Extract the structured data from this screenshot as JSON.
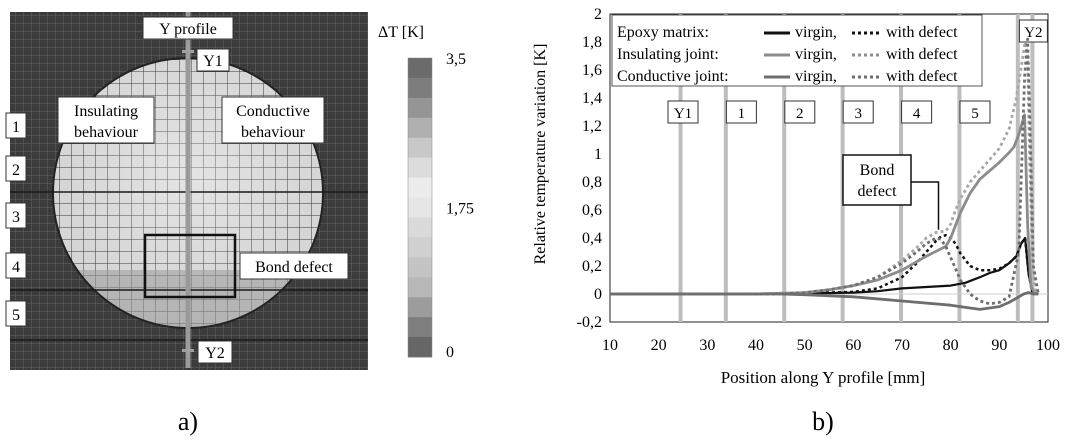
{
  "panel_a": {
    "caption": "a)",
    "y_profile_label": "Y profile",
    "y1_label": "Y1",
    "y2_label": "Y2",
    "insulating_label": [
      "Insulating",
      "behaviour"
    ],
    "conductive_label": [
      "Conductive",
      "behaviour"
    ],
    "bond_defect_label": "Bond defect",
    "zones": [
      "1",
      "2",
      "3",
      "4",
      "5"
    ],
    "colorbar": {
      "title": "ΔT [K]",
      "ticks": [
        "3,5",
        "1,75",
        "0"
      ],
      "range": [
        0,
        3.5
      ],
      "colors": [
        "#6b6b6b",
        "#7d7d7d",
        "#959595",
        "#b0b0b0",
        "#c8c8c8",
        "#dcdcdc",
        "#ececec",
        "#e6e6e6",
        "#dadada",
        "#d0d0d0",
        "#c4c4c4",
        "#b8b8b8",
        "#9c9c9c",
        "#7e7e7e",
        "#666666"
      ]
    }
  },
  "chart_data": {
    "type": "line",
    "caption": "b)",
    "xlabel": "Position along Y profile [mm]",
    "ylabel": "Relative temperature variation [K]",
    "xlim": [
      10,
      100
    ],
    "ylim": [
      -0.2,
      2
    ],
    "xticks": [
      10,
      20,
      30,
      40,
      50,
      60,
      70,
      80,
      90,
      100
    ],
    "yticks": [
      "-0,2",
      "0",
      "0,2",
      "0,4",
      "0,6",
      "0,8",
      "1",
      "1,2",
      "1,4",
      "1,6",
      "1,8",
      "2"
    ],
    "ytick_values": [
      -0.2,
      0,
      0.2,
      0.4,
      0.6,
      0.8,
      1,
      1.2,
      1.4,
      1.6,
      1.8,
      2
    ],
    "grid": false,
    "legend_position": "top",
    "legend": {
      "rows": [
        {
          "label": "Epoxy matrix:",
          "virgin": "virgin,",
          "defect": "with defect",
          "color": "#111111"
        },
        {
          "label": "Insulating joint:",
          "virgin": "virgin,",
          "defect": "with defect",
          "color": "#8c8c8c"
        },
        {
          "label": "Conductive joint:",
          "virgin": "virgin,",
          "defect": "with defect",
          "color": "#6e6e6e"
        }
      ]
    },
    "zone_lines": [
      24.5,
      33.8,
      45.8,
      57.8,
      69.8,
      81.8,
      93.8,
      96.8
    ],
    "zone_labels": [
      {
        "label": "Y1",
        "x": 25
      },
      {
        "label": "1",
        "x": 37
      },
      {
        "label": "2",
        "x": 49
      },
      {
        "label": "3",
        "x": 61
      },
      {
        "label": "4",
        "x": 73
      },
      {
        "label": "5",
        "x": 85
      },
      {
        "label": "Y2",
        "x": 97
      }
    ],
    "annotation": {
      "text": [
        "Bond",
        "defect"
      ],
      "target_x": 77.5,
      "target_y": 0.43
    },
    "series": [
      {
        "name": "Epoxy matrix: virgin",
        "color": "#111111",
        "dash": "solid",
        "width": 2.2,
        "x": [
          10,
          40,
          50,
          60,
          65,
          70,
          75,
          80,
          83,
          86,
          88,
          90,
          92,
          93.5,
          94.5,
          95.3,
          96,
          96.8,
          98
        ],
        "y": [
          0,
          0,
          0.005,
          0.01,
          0.02,
          0.04,
          0.05,
          0.06,
          0.08,
          0.12,
          0.15,
          0.17,
          0.22,
          0.27,
          0.36,
          0.4,
          0.15,
          0.01,
          0
        ]
      },
      {
        "name": "Epoxy matrix: with defect",
        "color": "#111111",
        "dash": "dotted",
        "width": 2.5,
        "x": [
          10,
          40,
          50,
          60,
          65,
          70,
          73,
          75,
          77,
          78,
          79,
          80,
          81,
          82,
          84,
          86,
          88,
          90,
          92,
          93.5,
          94.5,
          95.3,
          96,
          96.8,
          98
        ],
        "y": [
          0,
          0,
          0.005,
          0.015,
          0.04,
          0.12,
          0.22,
          0.3,
          0.38,
          0.41,
          0.42,
          0.4,
          0.36,
          0.29,
          0.2,
          0.17,
          0.17,
          0.18,
          0.22,
          0.27,
          0.36,
          0.4,
          0.15,
          0.01,
          0
        ]
      },
      {
        "name": "Insulating joint: virgin",
        "color": "#8c8c8c",
        "dash": "solid",
        "width": 2.8,
        "x": [
          10,
          40,
          50,
          55,
          60,
          65,
          70,
          75,
          79,
          80,
          82,
          84,
          86,
          88,
          90,
          92,
          93,
          94,
          95.2,
          95.8,
          96.5,
          97.5
        ],
        "y": [
          0,
          0,
          0.01,
          0.03,
          0.06,
          0.1,
          0.17,
          0.27,
          0.34,
          0.4,
          0.58,
          0.72,
          0.82,
          0.88,
          0.94,
          1.01,
          1.05,
          1.14,
          1.28,
          0.5,
          0.05,
          0
        ]
      },
      {
        "name": "Insulating joint: with defect",
        "color": "#a8a8a8",
        "dash": "dotted",
        "width": 2.8,
        "x": [
          10,
          40,
          50,
          55,
          60,
          65,
          70,
          73,
          75,
          77,
          79,
          80,
          81,
          82,
          84,
          86,
          88,
          90,
          92,
          93.5,
          94.5,
          95.3,
          95.8,
          96.2,
          96.8,
          97.5
        ],
        "y": [
          0,
          0,
          0.01,
          0.03,
          0.06,
          0.12,
          0.24,
          0.33,
          0.4,
          0.44,
          0.45,
          0.5,
          0.6,
          0.68,
          0.8,
          0.88,
          0.96,
          1.04,
          1.18,
          1.4,
          1.62,
          1.8,
          1.7,
          1.0,
          0.2,
          0
        ]
      },
      {
        "name": "Conductive joint: virgin",
        "color": "#6e6e6e",
        "dash": "solid",
        "width": 2.8,
        "x": [
          10,
          45,
          50,
          60,
          70,
          80,
          84,
          86,
          88,
          90,
          92,
          93.5,
          95,
          96,
          97,
          98
        ],
        "y": [
          0,
          0,
          -0.005,
          -0.02,
          -0.05,
          -0.08,
          -0.1,
          -0.11,
          -0.1,
          -0.09,
          -0.06,
          -0.03,
          0,
          0.01,
          0,
          0
        ]
      },
      {
        "name": "Conductive joint: with defect",
        "color": "#6e6e6e",
        "dash": "dotted",
        "width": 2.8,
        "x": [
          10,
          45,
          50,
          55,
          60,
          65,
          70,
          73,
          75,
          77,
          78,
          79,
          80,
          82,
          84,
          86,
          88,
          90,
          92,
          94,
          95.2,
          95.8,
          96.3,
          97,
          98
        ],
        "y": [
          0,
          0,
          0.01,
          0.03,
          0.06,
          0.12,
          0.22,
          0.3,
          0.36,
          0.4,
          0.39,
          0.34,
          0.26,
          0.1,
          0,
          -0.05,
          -0.07,
          -0.06,
          -0.02,
          0.3,
          1.55,
          1.82,
          1.2,
          0.2,
          0
        ]
      }
    ]
  }
}
